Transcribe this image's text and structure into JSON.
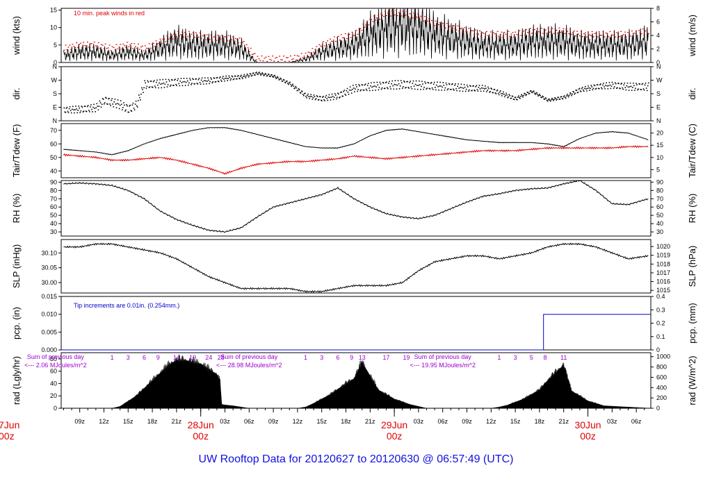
{
  "title": "UW Rooftop Data for 20120627  to  20120630 @ 06:57:49  (UTC)",
  "colors": {
    "primary": "#000000",
    "peak": "#e00000",
    "dew": "#e00000",
    "pcp": "#0000cc",
    "ann": "#9900cc",
    "title": "#1010e0"
  },
  "x_axis": {
    "start_label_partial": [
      "7Jun",
      "00z"
    ],
    "hour_ticks": [
      {
        "h": 9,
        "label": "09z"
      },
      {
        "h": 12,
        "label": "12z"
      },
      {
        "h": 15,
        "label": "15z"
      },
      {
        "h": 18,
        "label": "18z"
      },
      {
        "h": 21,
        "label": "21z"
      },
      {
        "h": 27,
        "label": "03z"
      },
      {
        "h": 30,
        "label": "06z"
      },
      {
        "h": 33,
        "label": "09z"
      },
      {
        "h": 36,
        "label": "12z"
      },
      {
        "h": 39,
        "label": "15z"
      },
      {
        "h": 42,
        "label": "18z"
      },
      {
        "h": 45,
        "label": "21z"
      },
      {
        "h": 51,
        "label": "03z"
      },
      {
        "h": 54,
        "label": "06z"
      },
      {
        "h": 57,
        "label": "09z"
      },
      {
        "h": 60,
        "label": "12z"
      },
      {
        "h": 63,
        "label": "15z"
      },
      {
        "h": 66,
        "label": "18z"
      },
      {
        "h": 69,
        "label": "21z"
      },
      {
        "h": 75,
        "label": "03z"
      },
      {
        "h": 78,
        "label": "06z"
      }
    ],
    "day_labels": [
      {
        "h": 24,
        "day": "28Jun",
        "hour": "00z"
      },
      {
        "h": 48,
        "day": "29Jun",
        "hour": "00z"
      },
      {
        "h": 72,
        "day": "30Jun",
        "hour": "00z"
      }
    ]
  },
  "panels": {
    "wind": {
      "ylabel_left": "wind (kts)",
      "ylabel_right": "wind (m/s)",
      "left_ticks": [
        "0",
        "5",
        "10",
        "15"
      ],
      "right_ticks": [
        "0",
        "2",
        "4",
        "6",
        "8"
      ],
      "annotation": "10 min. peak winds in red"
    },
    "dir": {
      "ylabel_left": "dir.",
      "ylabel_right": "dir.",
      "ticks": [
        "N",
        "E",
        "S",
        "W",
        "N"
      ]
    },
    "temp": {
      "ylabel_left": "Tair/Tdew (F)",
      "ylabel_right": "Tair/Tdew (C)",
      "left_ticks": [
        "40",
        "50",
        "60",
        "70"
      ],
      "right_ticks": [
        "5",
        "10",
        "15",
        "20"
      ]
    },
    "rh": {
      "ylabel_left": "RH (%)",
      "ylabel_right": "RH (%)",
      "ticks": [
        "30",
        "40",
        "50",
        "60",
        "70",
        "80",
        "90"
      ]
    },
    "slp": {
      "ylabel_left": "SLP (inHg)",
      "ylabel_right": "SLP (hPa)",
      "left_ticks": [
        "30.00",
        "30.05",
        "30.10"
      ],
      "right_ticks": [
        "1015",
        "1016",
        "1017",
        "1018",
        "1019",
        "1020"
      ]
    },
    "pcp": {
      "ylabel_left": "pcp. (in)",
      "ylabel_right": "pcp. (mm)",
      "left_ticks": [
        "0.000",
        "0.005",
        "0.010",
        "0.015"
      ],
      "right_ticks": [
        "0",
        "0.1",
        "0.2",
        "0.3",
        "0.4"
      ],
      "annotation": "Tip increments are 0.01in. (0.254mm.)"
    },
    "rad": {
      "ylabel_left": "rad (Lgly/hr)",
      "ylabel_right": "rad (W/m^2)",
      "left_ticks": [
        "0",
        "20",
        "40",
        "60",
        "80"
      ],
      "right_ticks": [
        "0",
        "200",
        "400",
        "600",
        "800",
        "1000"
      ],
      "sum_label": "Sum of previous day",
      "sums": [
        {
          "h": 6,
          "value": "<--- 2.06 MJoules/m^2"
        },
        {
          "h": 30,
          "value": "<--- 28.98 MJoules/m^2"
        },
        {
          "h": 54,
          "value": "<--- 19.95 MJoules/m^2"
        }
      ],
      "local_hours": [
        {
          "h": 13,
          "label": "1"
        },
        {
          "h": 15,
          "label": "3"
        },
        {
          "h": 17,
          "label": "6"
        },
        {
          "h": 18.7,
          "label": "9"
        },
        {
          "h": 21,
          "label": "14"
        },
        {
          "h": 23,
          "label": "19"
        },
        {
          "h": 25,
          "label": "24"
        },
        {
          "h": 26.5,
          "label": "28"
        },
        {
          "h": 37,
          "label": "1"
        },
        {
          "h": 39,
          "label": "3"
        },
        {
          "h": 41,
          "label": "6"
        },
        {
          "h": 42.7,
          "label": "9"
        },
        {
          "h": 44,
          "label": "13"
        },
        {
          "h": 47,
          "label": "17"
        },
        {
          "h": 49.5,
          "label": "19"
        },
        {
          "h": 61,
          "label": "1"
        },
        {
          "h": 63,
          "label": "3"
        },
        {
          "h": 65,
          "label": "5"
        },
        {
          "h": 66.7,
          "label": "8"
        },
        {
          "h": 69,
          "label": "11"
        }
      ]
    }
  },
  "chart_data": {
    "type": "line",
    "title": "UW Rooftop Data for 20120627  to  20120630 @ 06:57:49  (UTC)",
    "x_unit": "hours since 2012-06-27 00z",
    "xlim": [
      6.7,
      79.8
    ],
    "series": [
      {
        "name": "wind (kts)",
        "x": [
          7,
          9,
          11,
          13,
          15,
          17,
          19,
          21,
          23,
          25,
          27,
          29,
          30,
          31,
          33,
          35,
          37,
          39,
          41,
          43,
          45,
          47,
          49,
          51,
          53,
          55,
          57,
          59,
          61,
          63,
          65,
          67,
          69,
          71,
          73,
          75,
          77,
          79.5
        ],
        "values": [
          2,
          3,
          3,
          2,
          3,
          2,
          4,
          6,
          5,
          5,
          5,
          4,
          2,
          0,
          0,
          0,
          1,
          3,
          4,
          5,
          8,
          10,
          11,
          10,
          8,
          7,
          6,
          5,
          5,
          5,
          6,
          6,
          6,
          5,
          5,
          5,
          5,
          6
        ],
        "ylim": [
          0,
          15.5
        ]
      },
      {
        "name": "10 min. peak winds",
        "x": [
          7,
          9,
          11,
          13,
          15,
          17,
          19,
          21,
          23,
          25,
          27,
          29,
          31,
          35,
          37,
          39,
          41,
          43,
          45,
          47,
          49,
          51,
          53,
          55,
          57,
          59,
          61,
          63,
          65,
          67,
          69,
          71,
          73,
          75,
          77,
          79.5
        ],
        "values": [
          4,
          5,
          5,
          4,
          5,
          4,
          6,
          8,
          8,
          7,
          7,
          6,
          1,
          1,
          2,
          5,
          7,
          8,
          12,
          14,
          14,
          13,
          11,
          10,
          9,
          8,
          8,
          8,
          9,
          9,
          9,
          8,
          8,
          8,
          8,
          9
        ],
        "ylim": [
          0,
          15.5
        ]
      },
      {
        "name": "dir.",
        "x": [
          7,
          9,
          11,
          12,
          14,
          15,
          16,
          17,
          19,
          21,
          23,
          25,
          27,
          29,
          31,
          33,
          35,
          37,
          39,
          41,
          43,
          45,
          47,
          49,
          51,
          53,
          55,
          57,
          59,
          61,
          63,
          65,
          67,
          69,
          71,
          73,
          75,
          77,
          79.5
        ],
        "values": [
          75,
          80,
          90,
          140,
          110,
          80,
          110,
          245,
          250,
          260,
          265,
          270,
          285,
          295,
          320,
          300,
          250,
          170,
          150,
          170,
          220,
          230,
          240,
          245,
          240,
          235,
          230,
          220,
          220,
          190,
          150,
          200,
          140,
          160,
          210,
          230,
          240,
          230,
          230
        ],
        "ylim": [
          0,
          360
        ]
      },
      {
        "name": "Tair (F)",
        "x": [
          7,
          9,
          11,
          13,
          15,
          17,
          19,
          21,
          23,
          25,
          27,
          29,
          31,
          33,
          35,
          37,
          39,
          41,
          43,
          45,
          47,
          49,
          51,
          53,
          55,
          57,
          59,
          61,
          63,
          65,
          67,
          69,
          71,
          73,
          75,
          77,
          79.5
        ],
        "values": [
          56,
          55,
          54,
          52,
          55,
          60,
          64,
          67,
          70,
          72,
          72,
          70,
          67,
          64,
          61,
          58,
          57,
          57,
          60,
          66,
          70,
          71,
          69,
          67,
          65,
          63,
          62,
          61,
          61,
          61,
          60,
          58,
          64,
          68,
          69,
          68,
          63
        ],
        "ylim": [
          35,
          75
        ]
      },
      {
        "name": "Tdew (F)",
        "x": [
          7,
          9,
          11,
          13,
          15,
          17,
          19,
          21,
          23,
          25,
          27,
          29,
          31,
          33,
          35,
          37,
          39,
          41,
          43,
          45,
          47,
          49,
          51,
          53,
          55,
          57,
          59,
          61,
          63,
          65,
          67,
          69,
          71,
          73,
          75,
          77,
          79.5
        ],
        "values": [
          52,
          51,
          50,
          48,
          48,
          49,
          50,
          48,
          45,
          42,
          38,
          42,
          45,
          46,
          47,
          47,
          48,
          49,
          51,
          50,
          49,
          50,
          51,
          52,
          53,
          54,
          55,
          55,
          55,
          56,
          57,
          57,
          57,
          57,
          57,
          58,
          58
        ],
        "ylim": [
          35,
          75
        ]
      },
      {
        "name": "RH (%)",
        "x": [
          7,
          9,
          11,
          13,
          15,
          17,
          19,
          21,
          23,
          25,
          27,
          29,
          31,
          33,
          35,
          37,
          39,
          41,
          43,
          45,
          47,
          49,
          51,
          53,
          55,
          57,
          59,
          61,
          63,
          65,
          67,
          69,
          71,
          73,
          75,
          77,
          79.5
        ],
        "values": [
          88,
          89,
          88,
          86,
          80,
          70,
          55,
          45,
          38,
          32,
          30,
          35,
          48,
          60,
          65,
          70,
          75,
          83,
          70,
          60,
          52,
          48,
          46,
          50,
          58,
          66,
          73,
          76,
          80,
          82,
          83,
          88,
          92,
          80,
          64,
          63,
          70
        ],
        "ylim": [
          25,
          92
        ]
      },
      {
        "name": "SLP (inHg)",
        "x": [
          7,
          9,
          11,
          13,
          15,
          17,
          19,
          21,
          23,
          25,
          27,
          29,
          31,
          33,
          35,
          37,
          39,
          41,
          43,
          45,
          47,
          49,
          51,
          53,
          55,
          57,
          59,
          61,
          63,
          65,
          67,
          69,
          71,
          73,
          75,
          77,
          79.5
        ],
        "values": [
          30.12,
          30.12,
          30.13,
          30.13,
          30.12,
          30.11,
          30.1,
          30.08,
          30.05,
          30.02,
          30.0,
          29.98,
          29.98,
          29.98,
          29.98,
          29.97,
          29.97,
          29.98,
          29.99,
          29.99,
          29.99,
          30.0,
          30.04,
          30.07,
          30.08,
          30.09,
          30.09,
          30.08,
          30.09,
          30.1,
          30.12,
          30.13,
          30.13,
          30.12,
          30.1,
          30.08,
          30.09
        ],
        "ylim": [
          29.965,
          30.145
        ]
      },
      {
        "name": "pcp. (in)",
        "x": [
          6.7,
          66.5,
          66.5,
          79.8
        ],
        "values": [
          0,
          0,
          0.01,
          0.01
        ],
        "ylim": [
          0,
          0.015
        ]
      },
      {
        "name": "rad (Lgly/hr)",
        "x": [
          6.7,
          12,
          13,
          14,
          16,
          18,
          20,
          21,
          22,
          24,
          26,
          26.4,
          26.6,
          28,
          30,
          36,
          37,
          38,
          40,
          42,
          43,
          44,
          45,
          45.5,
          46,
          48,
          50,
          52,
          60,
          61,
          62,
          64,
          66,
          67,
          68,
          69,
          70,
          72,
          74,
          79.8
        ],
        "values": [
          0,
          0,
          0,
          3,
          20,
          45,
          70,
          78,
          78,
          72,
          55,
          45,
          6,
          4,
          0,
          0,
          2,
          8,
          22,
          40,
          48,
          75,
          52,
          42,
          30,
          15,
          6,
          0,
          0,
          2,
          5,
          15,
          30,
          45,
          58,
          70,
          28,
          12,
          4,
          0
        ],
        "ylim": [
          0,
          90
        ]
      }
    ]
  }
}
